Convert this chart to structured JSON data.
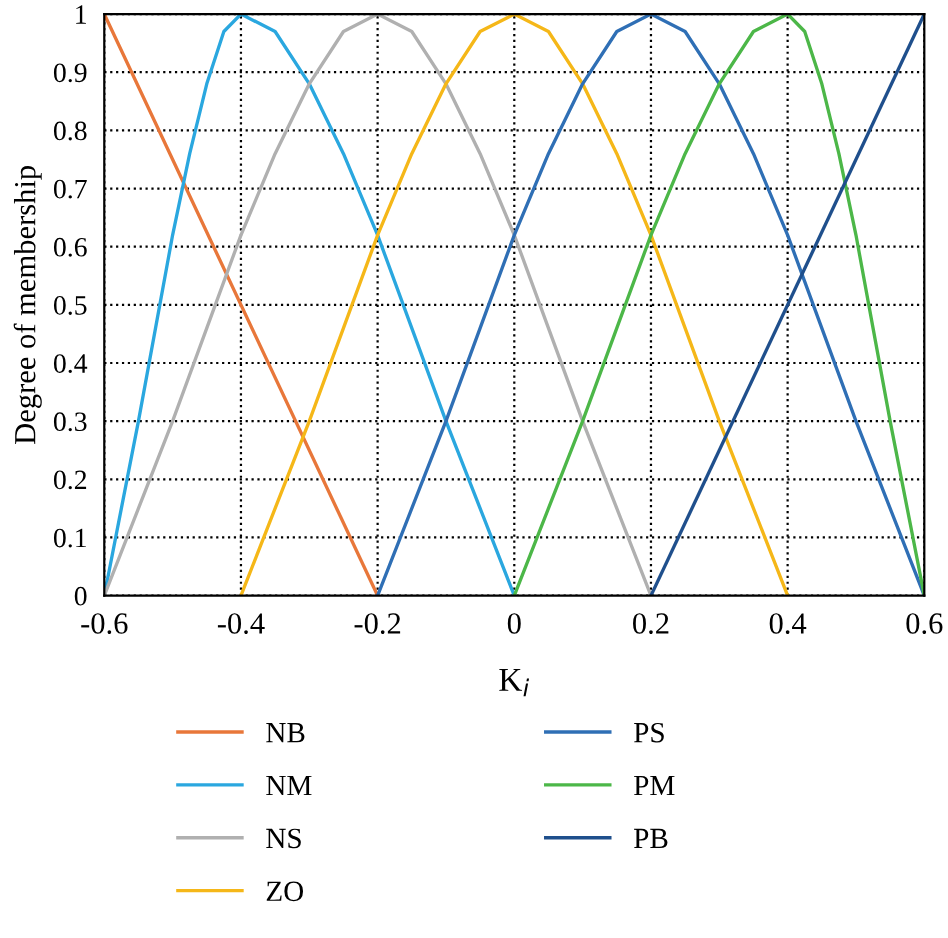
{
  "chart_data": {
    "type": "line",
    "xlabel": "K$_{i}$",
    "ylabel": "Degree of membership",
    "xlim": [
      -0.6,
      0.6
    ],
    "xticks": [
      -0.6,
      -0.4,
      -0.2,
      0,
      0.2,
      0.4,
      0.6
    ],
    "ylim": [
      0,
      1
    ],
    "yticks": [
      0,
      0.1,
      0.2,
      0.3,
      0.4,
      0.5,
      0.6,
      0.7,
      0.8,
      0.9,
      1
    ],
    "grid": true,
    "legend": "bottom",
    "marker": "none",
    "line_style": "solid",
    "series": [
      {
        "name": "NB",
        "color": "#e8773a",
        "x": [
          -0.6,
          -0.2
        ],
        "values": [
          1,
          0
        ]
      },
      {
        "name": "NM",
        "color": "#2aa7df",
        "x": [
          -0.6,
          -0.575,
          -0.55,
          -0.525,
          -0.5,
          -0.475,
          -0.45,
          -0.425,
          -0.4,
          -0.35,
          -0.3,
          -0.25,
          -0.2,
          -0.15,
          -0.1,
          -0.05,
          0
        ],
        "values": [
          0,
          0.15,
          0.3,
          0.46,
          0.62,
          0.76,
          0.88,
          0.97,
          1,
          0.97,
          0.88,
          0.76,
          0.62,
          0.46,
          0.3,
          0.15,
          0
        ]
      },
      {
        "name": "NS",
        "color": "#b0b0b0",
        "x": [
          -0.6,
          -0.55,
          -0.5,
          -0.45,
          -0.4,
          -0.35,
          -0.3,
          -0.25,
          -0.2,
          -0.15,
          -0.1,
          -0.05,
          0,
          0.05,
          0.1,
          0.15,
          0.2
        ],
        "values": [
          0,
          0.15,
          0.3,
          0.46,
          0.62,
          0.76,
          0.88,
          0.97,
          1,
          0.97,
          0.88,
          0.76,
          0.62,
          0.46,
          0.3,
          0.15,
          0
        ]
      },
      {
        "name": "ZO",
        "color": "#f5b718",
        "x": [
          -0.4,
          -0.35,
          -0.3,
          -0.25,
          -0.2,
          -0.15,
          -0.1,
          -0.05,
          0,
          0.05,
          0.1,
          0.15,
          0.2,
          0.25,
          0.3,
          0.35,
          0.4
        ],
        "values": [
          0,
          0.15,
          0.3,
          0.46,
          0.62,
          0.76,
          0.88,
          0.97,
          1,
          0.97,
          0.88,
          0.76,
          0.62,
          0.46,
          0.3,
          0.15,
          0
        ]
      },
      {
        "name": "PS",
        "color": "#2f6fb5",
        "x": [
          -0.2,
          -0.15,
          -0.1,
          -0.05,
          0,
          0.05,
          0.1,
          0.15,
          0.2,
          0.25,
          0.3,
          0.35,
          0.4,
          0.45,
          0.5,
          0.55,
          0.6
        ],
        "values": [
          0,
          0.15,
          0.3,
          0.46,
          0.62,
          0.76,
          0.88,
          0.97,
          1,
          0.97,
          0.88,
          0.76,
          0.62,
          0.46,
          0.3,
          0.15,
          0
        ]
      },
      {
        "name": "PM",
        "color": "#4cb748",
        "x": [
          0,
          0.05,
          0.1,
          0.15,
          0.2,
          0.25,
          0.3,
          0.35,
          0.4,
          0.425,
          0.45,
          0.475,
          0.5,
          0.525,
          0.55,
          0.575,
          0.6
        ],
        "values": [
          0,
          0.15,
          0.3,
          0.46,
          0.62,
          0.76,
          0.88,
          0.97,
          1,
          0.97,
          0.88,
          0.76,
          0.62,
          0.46,
          0.3,
          0.15,
          0
        ]
      },
      {
        "name": "PB",
        "color": "#1f4f8c",
        "x": [
          0.2,
          0.6
        ],
        "values": [
          0,
          1
        ]
      }
    ]
  }
}
